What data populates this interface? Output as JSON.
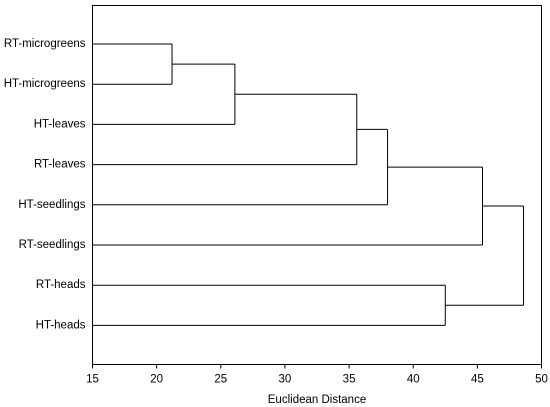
{
  "chart_data": {
    "type": "dendrogram",
    "title": "",
    "xlabel": "Euclidean Distance",
    "ylabel": "",
    "xlim": [
      15,
      50
    ],
    "xticks": [
      15,
      20,
      25,
      30,
      35,
      40,
      45,
      50
    ],
    "grid": false,
    "legend": "none",
    "line_color": "#000000",
    "leaves": [
      "RT-microgreens",
      "HT-microgreens",
      "HT-leaves",
      "RT-leaves",
      "HT-seedlings",
      "RT-seedlings",
      "RT-heads",
      "HT-heads"
    ],
    "merges": [
      {
        "left": "leaf:0",
        "right": "leaf:1",
        "distance": 21.2
      },
      {
        "left": "node:0",
        "right": "leaf:2",
        "distance": 26.1
      },
      {
        "left": "node:1",
        "right": "leaf:3",
        "distance": 35.6
      },
      {
        "left": "node:2",
        "right": "leaf:4",
        "distance": 38.0
      },
      {
        "left": "node:3",
        "right": "leaf:5",
        "distance": 45.4
      },
      {
        "left": "leaf:6",
        "right": "leaf:7",
        "distance": 42.5
      },
      {
        "left": "node:4",
        "right": "node:5",
        "distance": 48.6
      }
    ]
  }
}
